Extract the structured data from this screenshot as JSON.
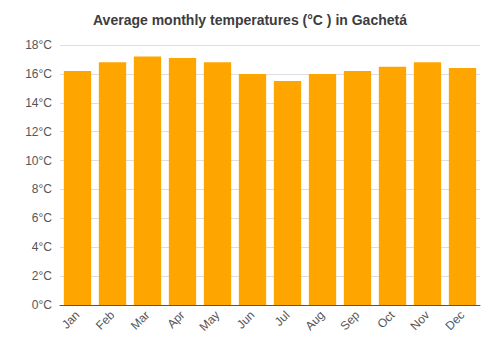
{
  "chart_data": {
    "type": "bar",
    "title": "Average monthly temperatures (°C ) in Gachetá",
    "categories": [
      "Jan",
      "Feb",
      "Mar",
      "Apr",
      "May",
      "Jun",
      "Jul",
      "Aug",
      "Sep",
      "Oct",
      "Nov",
      "Dec"
    ],
    "values": [
      16.2,
      16.8,
      17.2,
      17.1,
      16.8,
      16.0,
      15.5,
      16.0,
      16.2,
      16.5,
      16.8,
      16.4
    ],
    "color": "#FFA500",
    "ylim": [
      0,
      18
    ],
    "yticks": [
      {
        "value": 0,
        "label": "0°C"
      },
      {
        "value": 2,
        "label": "2°C"
      },
      {
        "value": 4,
        "label": "4°C"
      },
      {
        "value": 6,
        "label": "6°C"
      },
      {
        "value": 8,
        "label": "8°C"
      },
      {
        "value": 10,
        "label": "10°C"
      },
      {
        "value": 12,
        "label": "12°C"
      },
      {
        "value": 14,
        "label": "14°C"
      },
      {
        "value": 16,
        "label": "16°C"
      },
      {
        "value": 18,
        "label": "18°C"
      }
    ],
    "grid": true
  }
}
